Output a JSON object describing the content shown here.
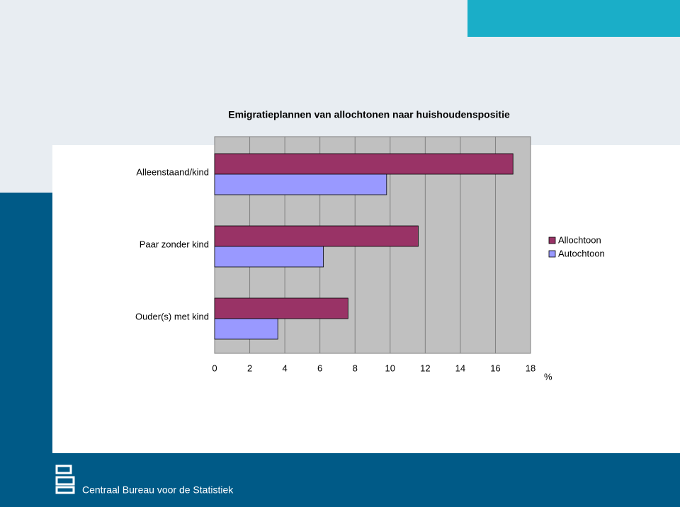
{
  "chart_data": {
    "type": "barh",
    "title": "Emigratieplannen van allochtonen naar huishoudenspositie",
    "categories": [
      "Alleenstaand/kind",
      "Paar zonder kind",
      "Ouder(s) met kind"
    ],
    "series": [
      {
        "name": "Allochtoon",
        "color": "#993366",
        "values": [
          17.0,
          11.6,
          7.6
        ]
      },
      {
        "name": "Autochtoon",
        "color": "#9999ff",
        "values": [
          9.8,
          6.2,
          3.6
        ]
      }
    ],
    "xlabel": "%",
    "xlim": [
      0,
      18
    ],
    "xticks": [
      0,
      2,
      4,
      6,
      8,
      10,
      12,
      14,
      16,
      18
    ],
    "grid": true,
    "legend": "right"
  },
  "footer": "Centraal Bureau voor de Statistiek"
}
